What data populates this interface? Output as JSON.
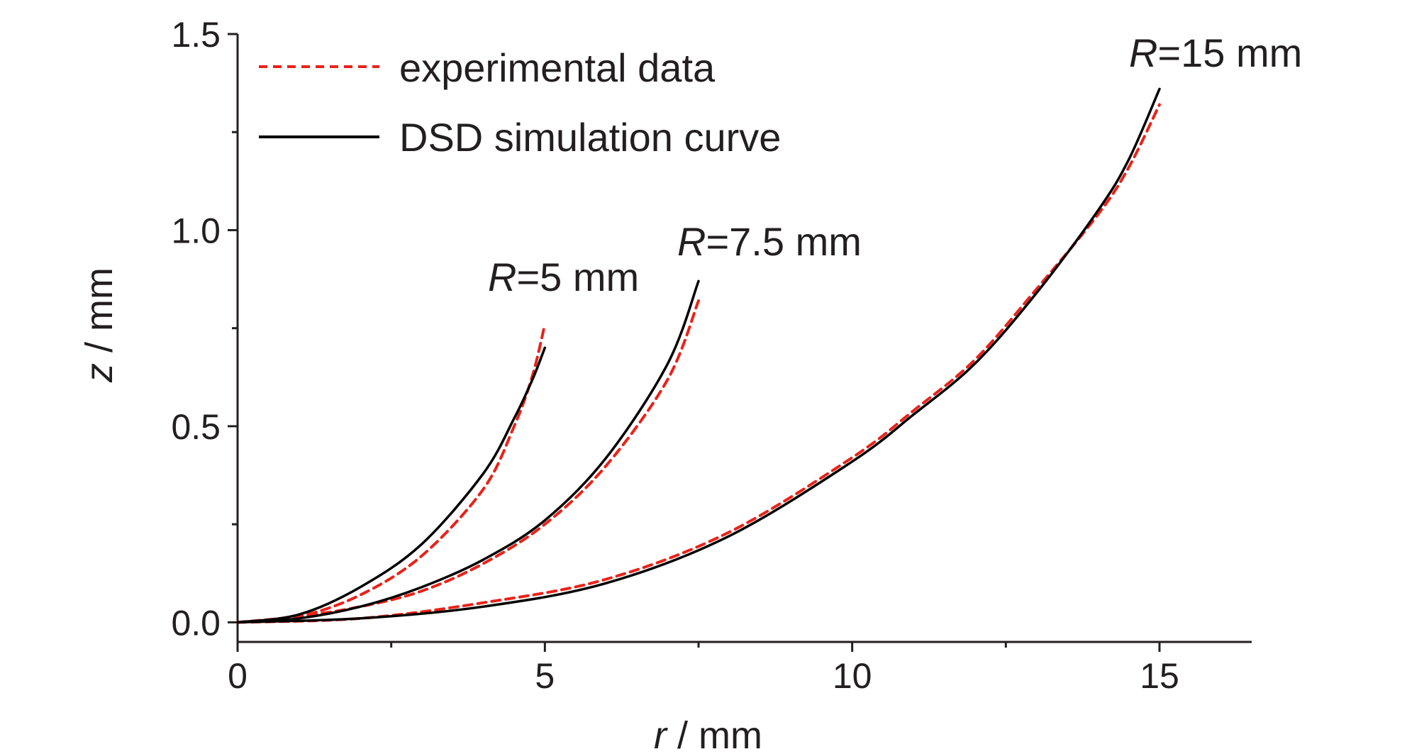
{
  "chart_data": {
    "type": "line",
    "xlabel": {
      "var": "r",
      "unit": " / mm"
    },
    "ylabel": {
      "var": "z",
      "unit": " / mm"
    },
    "xlim": [
      0,
      16.5
    ],
    "ylim": [
      -0.05,
      1.5
    ],
    "x_ticks": [
      "0",
      "5",
      "10",
      "15"
    ],
    "y_ticks": [
      "0.0",
      "0.5",
      "1.0",
      "1.5"
    ],
    "grid": false,
    "legend_position": "top-left",
    "legend": [
      {
        "label": "experimental data",
        "style": "dashed",
        "color": "#e8231a"
      },
      {
        "label": "DSD simulation curve",
        "style": "solid",
        "color": "#000000"
      }
    ],
    "annotations": [
      {
        "var": "R",
        "text": "=5 mm"
      },
      {
        "var": "R",
        "text": "=7.5 mm"
      },
      {
        "var": "R",
        "text": "=15 mm"
      }
    ],
    "series": [
      {
        "group": "R=5 mm",
        "kind": "experimental",
        "x": [
          0,
          1,
          2,
          3,
          4,
          4.5,
          4.8,
          5.0
        ],
        "y": [
          0,
          0.015,
          0.07,
          0.17,
          0.34,
          0.5,
          0.63,
          0.76
        ]
      },
      {
        "group": "R=5 mm",
        "kind": "simulation",
        "x": [
          0,
          1,
          2,
          3,
          4,
          4.5,
          4.8,
          5.0
        ],
        "y": [
          0,
          0.02,
          0.09,
          0.2,
          0.38,
          0.52,
          0.62,
          0.7
        ]
      },
      {
        "group": "R=7.5 mm",
        "kind": "experimental",
        "x": [
          0,
          1,
          2,
          3,
          4,
          5,
          6,
          7,
          7.5
        ],
        "y": [
          0,
          0.015,
          0.04,
          0.08,
          0.15,
          0.25,
          0.4,
          0.62,
          0.82
        ]
      },
      {
        "group": "R=7.5 mm",
        "kind": "simulation",
        "x": [
          0,
          1,
          2,
          3,
          4,
          5,
          6,
          7,
          7.5
        ],
        "y": [
          0,
          0.01,
          0.04,
          0.09,
          0.16,
          0.26,
          0.42,
          0.66,
          0.87
        ]
      },
      {
        "group": "R=15 mm",
        "kind": "experimental",
        "x": [
          0,
          2,
          4,
          6,
          8,
          10,
          11,
          12,
          13,
          14,
          14.5,
          15
        ],
        "y": [
          0,
          0.01,
          0.05,
          0.11,
          0.23,
          0.42,
          0.54,
          0.67,
          0.85,
          1.04,
          1.16,
          1.32
        ]
      },
      {
        "group": "R=15 mm",
        "kind": "simulation",
        "x": [
          0,
          2,
          4,
          6,
          8,
          10,
          11,
          12,
          13,
          14,
          14.5,
          15
        ],
        "y": [
          0,
          0.01,
          0.04,
          0.1,
          0.22,
          0.41,
          0.53,
          0.66,
          0.84,
          1.05,
          1.18,
          1.36
        ]
      }
    ]
  }
}
